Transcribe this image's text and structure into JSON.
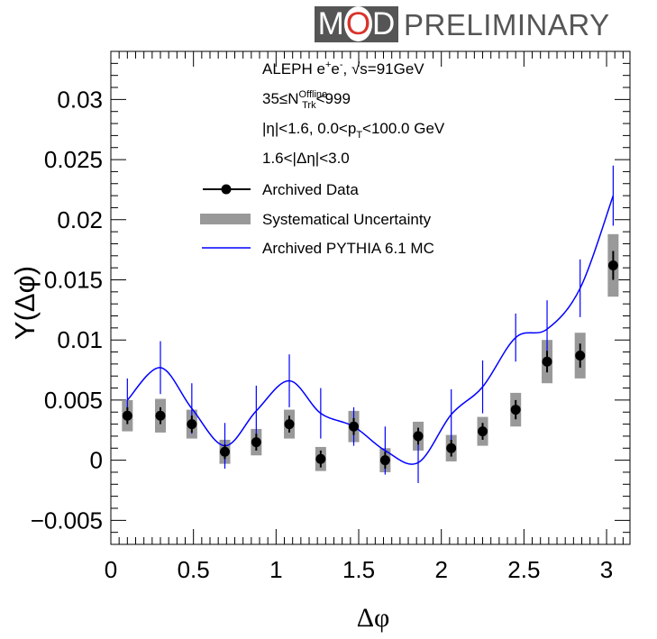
{
  "logo": {
    "mod": "MOD",
    "preliminary": "PRELIMINARY",
    "box_color": "#555555",
    "o_color": "#d9342b"
  },
  "chart_data": {
    "type": "scatter",
    "xlabel": "Δφ",
    "ylabel": "Y(Δφ)",
    "xlim": [
      0,
      3.1416
    ],
    "ylim": [
      -0.007,
      0.034
    ],
    "x_ticks": [
      0,
      0.5,
      1,
      1.5,
      2,
      2.5,
      3
    ],
    "x_tick_labels": [
      "0",
      "0.5",
      "1",
      "1.5",
      "2",
      "2.5",
      "3"
    ],
    "y_ticks": [
      -0.005,
      0,
      0.005,
      0.01,
      0.015,
      0.02,
      0.025,
      0.03
    ],
    "y_tick_labels": [
      "−0.005",
      "0",
      "0.005",
      "0.01",
      "0.015",
      "0.02",
      "0.025",
      "0.03"
    ],
    "grid": false,
    "annotations": [
      {
        "key": "line1",
        "parts": [
          [
            "ALEPH e",
            ""
          ],
          [
            "+",
            "sup"
          ],
          [
            "e",
            ""
          ],
          [
            "-",
            "sup"
          ],
          [
            ", √s=91GeV",
            ""
          ]
        ]
      },
      {
        "key": "line2",
        "parts": [
          [
            "35≤N",
            ""
          ],
          [
            "Offline",
            "sup"
          ],
          [
            "Trk",
            "sub"
          ],
          [
            "<999",
            ""
          ]
        ]
      },
      {
        "key": "line3",
        "parts": [
          [
            "|η|<1.6, 0.0<p",
            ""
          ],
          [
            "T",
            "sub"
          ],
          [
            "<100.0 GeV",
            ""
          ]
        ]
      },
      {
        "key": "line4",
        "parts": [
          [
            "1.6<|Δη|<3.0",
            ""
          ]
        ]
      }
    ],
    "legend": {
      "placement": "top-center",
      "entries": [
        "Archived Data",
        "Systematical Uncertainty",
        "Archived PYTHIA 6.1 MC"
      ]
    },
    "series": [
      {
        "name": "Archived Data",
        "color": "#000000",
        "x": [
          0.1,
          0.3,
          0.49,
          0.69,
          0.88,
          1.08,
          1.27,
          1.47,
          1.66,
          1.86,
          2.06,
          2.25,
          2.45,
          2.64,
          2.84,
          3.04
        ],
        "y": [
          0.0037,
          0.0037,
          0.003,
          0.0007,
          0.0015,
          0.003,
          0.0001,
          0.0028,
          0.0,
          0.002,
          0.001,
          0.0024,
          0.0042,
          0.0082,
          0.0087,
          0.0162
        ],
        "stat_err": [
          0.0007,
          0.0007,
          0.0007,
          0.0006,
          0.0007,
          0.0007,
          0.0007,
          0.0007,
          0.0007,
          0.0007,
          0.0007,
          0.0007,
          0.0008,
          0.0009,
          0.001,
          0.0012
        ],
        "syst_err": [
          0.0013,
          0.0014,
          0.0012,
          0.001,
          0.0011,
          0.0012,
          0.001,
          0.0013,
          0.001,
          0.0012,
          0.0011,
          0.0012,
          0.0014,
          0.0018,
          0.0019,
          0.0026
        ]
      },
      {
        "name": "Archived PYTHIA 6.1 MC",
        "color": "#0000ff",
        "x": [
          0.1,
          0.3,
          0.49,
          0.69,
          0.88,
          1.08,
          1.27,
          1.47,
          1.66,
          1.86,
          2.06,
          2.25,
          2.45,
          2.64,
          2.84,
          3.04
        ],
        "y": [
          0.005,
          0.0077,
          0.0043,
          0.0012,
          0.0041,
          0.0066,
          0.0039,
          0.0028,
          0.0008,
          -0.0002,
          0.0038,
          0.0061,
          0.0102,
          0.0109,
          0.0143,
          0.022
        ],
        "err": [
          0.0018,
          0.0022,
          0.0021,
          0.0019,
          0.0021,
          0.0022,
          0.0021,
          0.0016,
          0.002,
          0.0017,
          0.0021,
          0.0022,
          0.002,
          0.0024,
          0.0024,
          0.0025
        ]
      }
    ]
  }
}
